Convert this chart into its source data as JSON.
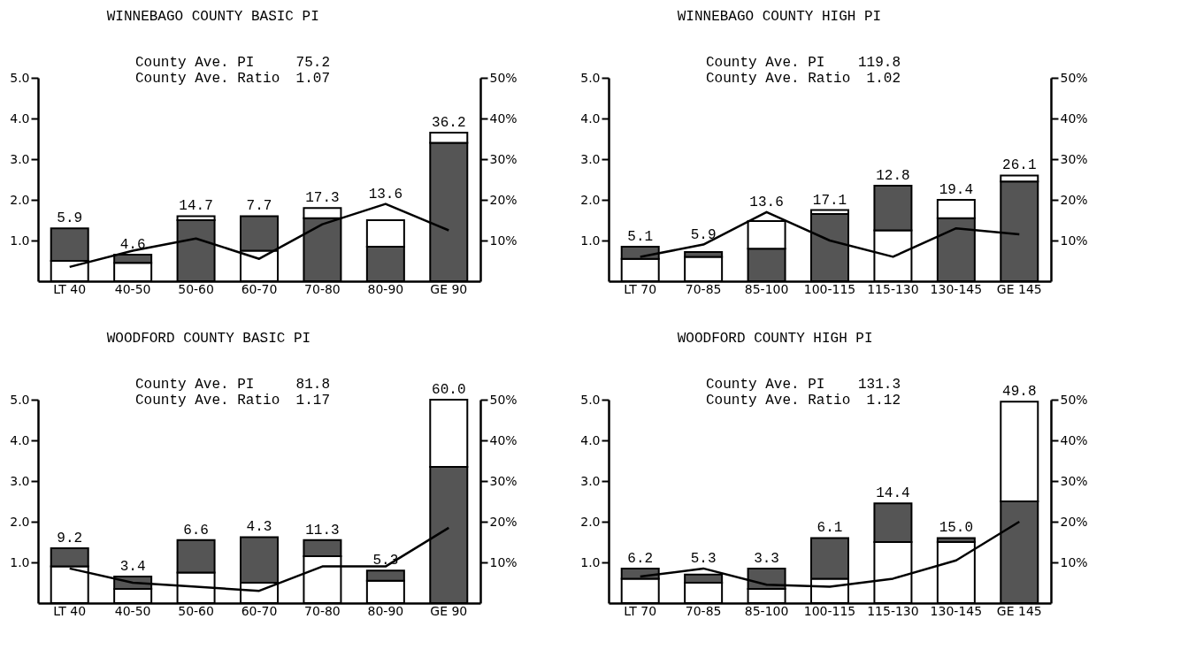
{
  "chart_data": [
    {
      "type": "bar",
      "title": "WINNEBAGO COUNTY BASIC PI",
      "annotations": [
        "County Ave. PI",
        "75.2",
        "County Ave. Ratio",
        "1.07",
        {
          "text": "5.9",
          "x": "LT 40",
          "y": 1.3
        },
        {
          "text": "4.6",
          "x": "40-50",
          "y": 0.65
        },
        {
          "text": "14.7",
          "x": "50-60",
          "y": 1.6
        },
        {
          "text": "7.7",
          "x": "60-70",
          "y": 1.6
        },
        {
          "text": "17.3",
          "x": "70-80",
          "y": 1.8
        },
        {
          "text": "13.6",
          "x": "80-90",
          "y": 1.9
        },
        {
          "text": "36.2",
          "x": "GE 90",
          "y": 3.65
        }
      ],
      "categories": [
        "LT 40",
        "40-50",
        "50-60",
        "60-70",
        "70-80",
        "80-90",
        "GE 90"
      ],
      "stacked": true,
      "ylim": [
        0,
        5
      ],
      "yticks": [
        {
          "value": 1,
          "label": "1.0"
        },
        {
          "value": 2,
          "label": "2.0"
        },
        {
          "value": 3,
          "label": "3.0"
        },
        {
          "value": 4,
          "label": "4.0"
        },
        {
          "value": 5,
          "label": "5.0"
        }
      ],
      "y2lim": [
        0,
        50
      ],
      "y2ticks": [
        {
          "value": 10,
          "label": "10%"
        },
        {
          "value": 20,
          "label": "20%"
        },
        {
          "value": 30,
          "label": "30%"
        },
        {
          "value": 40,
          "label": "40%"
        },
        {
          "value": 50,
          "label": "50%"
        }
      ],
      "series": [
        {
          "color": "#ffffff",
          "values": [
            0.5,
            0.45,
            null,
            0.75,
            null,
            null,
            null
          ]
        },
        {
          "color": "#555555",
          "values": [
            0.8,
            0.2,
            1.5,
            0.85,
            1.55,
            0.85,
            3.4
          ]
        },
        {
          "color": "#ffffff",
          "values": [
            null,
            null,
            0.1,
            null,
            0.25,
            0.65,
            0.25
          ]
        },
        {
          "type": "line",
          "axis": "y2",
          "color": "#000000",
          "values": [
            3.5,
            7.5,
            10.5,
            5.5,
            14,
            19,
            12.5
          ]
        }
      ]
    },
    {
      "type": "bar",
      "title": "WINNEBAGO COUNTY HIGH PI",
      "annotations": [
        "County Ave. PI",
        "119.8",
        "County Ave. Ratio",
        "1.02",
        {
          "text": "5.1",
          "x": "LT 70",
          "y": 0.85
        },
        {
          "text": "5.9",
          "x": "70-85",
          "y": 0.9
        },
        {
          "text": "13.6",
          "x": "85-100",
          "y": 1.7
        },
        {
          "text": "17.1",
          "x": "100-115",
          "y": 1.75
        },
        {
          "text": "12.8",
          "x": "115-130",
          "y": 2.35
        },
        {
          "text": "19.4",
          "x": "130-145",
          "y": 2.0
        },
        {
          "text": "26.1",
          "x": "GE 145",
          "y": 2.6
        }
      ],
      "categories": [
        "LT 70",
        "70-85",
        "85-100",
        "100-115",
        "115-130",
        "130-145",
        "GE 145"
      ],
      "stacked": true,
      "ylim": [
        0,
        5
      ],
      "yticks": [
        {
          "value": 1,
          "label": "1.0"
        },
        {
          "value": 2,
          "label": "2.0"
        },
        {
          "value": 3,
          "label": "3.0"
        },
        {
          "value": 4,
          "label": "4.0"
        },
        {
          "value": 5,
          "label": "5.0"
        }
      ],
      "y2lim": [
        0,
        50
      ],
      "y2ticks": [
        {
          "value": 10,
          "label": "10%"
        },
        {
          "value": 20,
          "label": "20%"
        },
        {
          "value": 30,
          "label": "30%"
        },
        {
          "value": 40,
          "label": "40%"
        },
        {
          "value": 50,
          "label": "50%"
        }
      ],
      "series": [
        {
          "color": "#ffffff",
          "values": [
            0.55,
            0.6,
            null,
            null,
            1.25,
            null,
            null
          ]
        },
        {
          "color": "#555555",
          "values": [
            0.3,
            0.12,
            0.8,
            1.65,
            1.1,
            1.55,
            2.45
          ]
        },
        {
          "color": "#ffffff",
          "values": [
            null,
            null,
            0.68,
            0.1,
            null,
            0.45,
            0.15
          ]
        },
        {
          "type": "line",
          "axis": "y2",
          "color": "#000000",
          "values": [
            6,
            9,
            17,
            10,
            6,
            13,
            11.5
          ]
        }
      ]
    },
    {
      "type": "bar",
      "title": "WOODFORD COUNTY BASIC PI",
      "annotations": [
        "County Ave. PI",
        "81.8",
        "County Ave. Ratio",
        "1.17",
        {
          "text": "9.2",
          "x": "LT 40",
          "y": 1.35
        },
        {
          "text": "3.4",
          "x": "40-50",
          "y": 0.65
        },
        {
          "text": "6.6",
          "x": "50-60",
          "y": 1.55
        },
        {
          "text": "4.3",
          "x": "60-70",
          "y": 1.62
        },
        {
          "text": "11.3",
          "x": "70-80",
          "y": 1.55
        },
        {
          "text": "5.3",
          "x": "80-90",
          "y": 0.8
        },
        {
          "text": "60.0",
          "x": "GE 90",
          "y": 5.0
        }
      ],
      "categories": [
        "LT 40",
        "40-50",
        "50-60",
        "60-70",
        "70-80",
        "80-90",
        "GE 90"
      ],
      "stacked": true,
      "ylim": [
        0,
        5
      ],
      "yticks": [
        {
          "value": 1,
          "label": "1.0"
        },
        {
          "value": 2,
          "label": "2.0"
        },
        {
          "value": 3,
          "label": "3.0"
        },
        {
          "value": 4,
          "label": "4.0"
        },
        {
          "value": 5,
          "label": "5.0"
        }
      ],
      "y2lim": [
        0,
        50
      ],
      "y2ticks": [
        {
          "value": 10,
          "label": "10%"
        },
        {
          "value": 20,
          "label": "20%"
        },
        {
          "value": 30,
          "label": "30%"
        },
        {
          "value": 40,
          "label": "40%"
        },
        {
          "value": 50,
          "label": "50%"
        }
      ],
      "series": [
        {
          "color": "#ffffff",
          "values": [
            0.9,
            0.35,
            0.75,
            0.5,
            1.15,
            0.55,
            null
          ]
        },
        {
          "color": "#555555",
          "values": [
            0.45,
            0.3,
            0.8,
            1.12,
            0.4,
            0.25,
            3.35
          ]
        },
        {
          "color": "#ffffff",
          "values": [
            null,
            null,
            null,
            null,
            null,
            null,
            1.65
          ]
        },
        {
          "type": "line",
          "axis": "y2",
          "color": "#000000",
          "values": [
            8.5,
            5,
            4,
            3,
            9,
            9,
            18.5
          ]
        }
      ]
    },
    {
      "type": "bar",
      "title": "WOODFORD COUNTY HIGH PI",
      "annotations": [
        "County Ave. PI",
        "131.3",
        "County Ave. Ratio",
        "1.12",
        {
          "text": "6.2",
          "x": "LT 70",
          "y": 0.85
        },
        {
          "text": "5.3",
          "x": "70-85",
          "y": 0.85
        },
        {
          "text": "3.3",
          "x": "85-100",
          "y": 0.85
        },
        {
          "text": "6.1",
          "x": "100-115",
          "y": 1.6
        },
        {
          "text": "14.4",
          "x": "115-130",
          "y": 2.45
        },
        {
          "text": "15.0",
          "x": "130-145",
          "y": 1.6
        },
        {
          "text": "49.8",
          "x": "GE 145",
          "y": 4.95
        }
      ],
      "categories": [
        "LT 70",
        "70-85",
        "85-100",
        "100-115",
        "115-130",
        "130-145",
        "GE 145"
      ],
      "stacked": true,
      "ylim": [
        0,
        5
      ],
      "yticks": [
        {
          "value": 1,
          "label": "1.0"
        },
        {
          "value": 2,
          "label": "2.0"
        },
        {
          "value": 3,
          "label": "3.0"
        },
        {
          "value": 4,
          "label": "4.0"
        },
        {
          "value": 5,
          "label": "5.0"
        }
      ],
      "y2lim": [
        0,
        50
      ],
      "y2ticks": [
        {
          "value": 10,
          "label": "10%"
        },
        {
          "value": 20,
          "label": "20%"
        },
        {
          "value": 30,
          "label": "30%"
        },
        {
          "value": 40,
          "label": "40%"
        },
        {
          "value": 50,
          "label": "50%"
        }
      ],
      "series": [
        {
          "color": "#ffffff",
          "values": [
            0.6,
            0.5,
            0.35,
            0.6,
            1.5,
            1.5,
            null
          ]
        },
        {
          "color": "#555555",
          "values": [
            0.25,
            0.2,
            0.5,
            1.0,
            0.95,
            0.1,
            2.5
          ]
        },
        {
          "color": "#ffffff",
          "values": [
            null,
            null,
            null,
            null,
            null,
            null,
            2.45
          ]
        },
        {
          "type": "line",
          "axis": "y2",
          "color": "#000000",
          "values": [
            6.5,
            8.5,
            4.5,
            4,
            6,
            10.5,
            20
          ]
        }
      ]
    }
  ]
}
